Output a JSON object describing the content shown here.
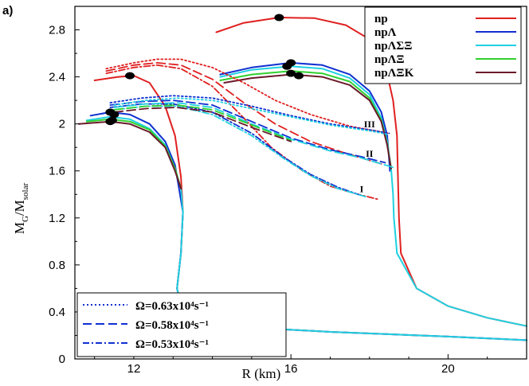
{
  "chart_data": {
    "type": "line",
    "panel_label": "a)",
    "xlabel": "R (km)",
    "ylabel_main": "M",
    "ylabel_sub1": "G",
    "ylabel_mid": "/M",
    "ylabel_sub2": "solar",
    "xlim": [
      10.5,
      22
    ],
    "ylim": [
      0,
      3.0
    ],
    "x_ticks": [
      12,
      16,
      20
    ],
    "x_tick_labels": [
      "12",
      "16",
      "20"
    ],
    "y_ticks": [
      0,
      0.4,
      0.8,
      1.2,
      1.6,
      2.0,
      2.4,
      2.8
    ],
    "y_tick_labels": [
      "0",
      "0.4",
      "0.8",
      "1.2",
      "1.6",
      "2",
      "2.4",
      "2.8"
    ],
    "grid": false,
    "legend_top": {
      "placement": "top-right",
      "entries": [
        {
          "label": "np",
          "color": "#e02020"
        },
        {
          "label": "npΛ",
          "color": "#1030d0"
        },
        {
          "label": "npΛΣΞ",
          "color": "#20d0e0"
        },
        {
          "label": "npΛΞ",
          "color": "#30d030"
        },
        {
          "label": "npΛΞK",
          "color": "#6a1a2a"
        }
      ]
    },
    "legend_bottom": {
      "placement": "bottom-left",
      "entries": [
        {
          "label": "Ω=0.63x10⁴s⁻¹",
          "style": "dotted",
          "color": "#1030d0"
        },
        {
          "label": "Ω=0.58x10⁴s⁻¹",
          "style": "dashed",
          "color": "#1030d0"
        },
        {
          "label": "Ω=0.53x10⁴s⁻¹",
          "style": "dashdot",
          "color": "#1030d0"
        }
      ]
    },
    "annotations": [
      {
        "text": "III",
        "x": 18.0,
        "y": 1.97
      },
      {
        "text": "II",
        "x": 18.0,
        "y": 1.72
      },
      {
        "text": "I",
        "x": 17.8,
        "y": 1.42
      }
    ],
    "series": [
      {
        "name": "np",
        "color": "#e02020",
        "style": "solid",
        "points": [
          [
            11.0,
            2.37
          ],
          [
            11.6,
            2.4
          ],
          [
            12.0,
            2.41
          ],
          [
            12.4,
            2.35
          ],
          [
            12.8,
            2.15
          ],
          [
            13.05,
            1.9
          ],
          [
            13.2,
            1.55
          ],
          [
            13.25,
            1.25
          ],
          [
            13.2,
            0.9
          ],
          [
            13.1,
            0.6
          ],
          [
            13.2,
            0.45
          ],
          [
            13.8,
            0.32
          ],
          [
            14.8,
            0.27
          ],
          [
            17.0,
            0.23
          ],
          [
            20.0,
            0.19
          ],
          [
            22.0,
            0.16
          ]
        ]
      },
      {
        "name": "npΛ",
        "color": "#1030d0",
        "style": "solid",
        "points": [
          [
            10.9,
            2.07
          ],
          [
            11.4,
            2.1
          ],
          [
            11.9,
            2.08
          ],
          [
            12.4,
            2.0
          ],
          [
            12.8,
            1.85
          ],
          [
            13.05,
            1.65
          ],
          [
            13.15,
            1.45
          ],
          [
            13.25,
            1.25
          ],
          [
            13.2,
            0.9
          ],
          [
            13.1,
            0.6
          ],
          [
            13.2,
            0.45
          ],
          [
            13.8,
            0.32
          ],
          [
            14.8,
            0.27
          ],
          [
            17.0,
            0.23
          ],
          [
            20.0,
            0.19
          ],
          [
            22.0,
            0.16
          ]
        ]
      },
      {
        "name": "npΛΣΞ",
        "color": "#20d0e0",
        "style": "solid",
        "points": [
          [
            10.8,
            2.03
          ],
          [
            11.4,
            2.06
          ],
          [
            11.9,
            2.04
          ],
          [
            12.4,
            1.96
          ],
          [
            12.8,
            1.82
          ],
          [
            13.05,
            1.62
          ],
          [
            13.2,
            1.45
          ],
          [
            13.25,
            1.25
          ],
          [
            13.2,
            0.9
          ],
          [
            13.1,
            0.6
          ],
          [
            13.2,
            0.45
          ],
          [
            13.8,
            0.32
          ],
          [
            14.8,
            0.27
          ],
          [
            17.0,
            0.23
          ],
          [
            20.0,
            0.19
          ],
          [
            22.0,
            0.16
          ]
        ]
      },
      {
        "name": "npΛΞ",
        "color": "#30d030",
        "style": "solid",
        "points": [
          [
            10.8,
            2.02
          ],
          [
            11.4,
            2.04
          ],
          [
            11.9,
            2.02
          ],
          [
            12.4,
            1.95
          ],
          [
            12.8,
            1.81
          ],
          [
            13.05,
            1.62
          ],
          [
            13.2,
            1.45
          ]
        ]
      },
      {
        "name": "npΛΞK",
        "color": "#6a1a2a",
        "style": "solid",
        "points": [
          [
            10.6,
            2.0
          ],
          [
            11.4,
            2.02
          ],
          [
            11.9,
            2.0
          ],
          [
            12.4,
            1.93
          ],
          [
            12.8,
            1.8
          ],
          [
            13.05,
            1.6
          ],
          [
            13.2,
            1.45
          ]
        ]
      },
      {
        "name": "np",
        "color": "#e02020",
        "style": "solid",
        "points": [
          [
            14.1,
            2.78
          ],
          [
            14.8,
            2.86
          ],
          [
            15.7,
            2.905
          ],
          [
            16.6,
            2.9
          ],
          [
            17.4,
            2.84
          ],
          [
            18.0,
            2.72
          ],
          [
            18.4,
            2.5
          ],
          [
            18.6,
            2.2
          ],
          [
            18.7,
            1.9
          ],
          [
            18.72,
            1.6
          ],
          [
            18.75,
            1.2
          ],
          [
            18.8,
            0.9
          ],
          [
            19.2,
            0.6
          ],
          [
            20.0,
            0.45
          ],
          [
            21.0,
            0.35
          ],
          [
            22.0,
            0.28
          ]
        ]
      },
      {
        "name": "npΛ",
        "color": "#1030d0",
        "style": "solid",
        "points": [
          [
            14.2,
            2.42
          ],
          [
            15.0,
            2.48
          ],
          [
            16.0,
            2.52
          ],
          [
            16.8,
            2.5
          ],
          [
            17.5,
            2.42
          ],
          [
            18.0,
            2.28
          ],
          [
            18.3,
            2.1
          ],
          [
            18.45,
            1.9
          ],
          [
            18.5,
            1.7
          ],
          [
            18.52,
            1.6
          ]
        ]
      },
      {
        "name": "npΛΣΞ",
        "color": "#20d0e0",
        "style": "solid",
        "points": [
          [
            14.2,
            2.4
          ],
          [
            15.0,
            2.46
          ],
          [
            16.0,
            2.49
          ],
          [
            16.8,
            2.47
          ],
          [
            17.5,
            2.39
          ],
          [
            18.0,
            2.25
          ],
          [
            18.3,
            2.05
          ],
          [
            18.45,
            1.85
          ],
          [
            18.55,
            1.62
          ],
          [
            18.6,
            1.4
          ],
          [
            18.62,
            1.2
          ],
          [
            18.7,
            0.9
          ],
          [
            19.2,
            0.6
          ],
          [
            20.0,
            0.45
          ],
          [
            21.0,
            0.35
          ],
          [
            22.0,
            0.28
          ]
        ]
      },
      {
        "name": "npΛΞ",
        "color": "#30d030",
        "style": "solid",
        "points": [
          [
            14.2,
            2.37
          ],
          [
            15.0,
            2.42
          ],
          [
            16.0,
            2.45
          ],
          [
            16.8,
            2.43
          ],
          [
            17.5,
            2.36
          ],
          [
            18.0,
            2.22
          ],
          [
            18.3,
            2.03
          ],
          [
            18.45,
            1.83
          ],
          [
            18.55,
            1.62
          ]
        ]
      },
      {
        "name": "npΛΞK",
        "color": "#6a1a2a",
        "style": "solid",
        "points": [
          [
            14.3,
            2.35
          ],
          [
            15.0,
            2.39
          ],
          [
            16.0,
            2.42
          ],
          [
            16.8,
            2.4
          ],
          [
            17.5,
            2.33
          ],
          [
            18.0,
            2.2
          ],
          [
            18.3,
            2.02
          ],
          [
            18.45,
            1.82
          ],
          [
            18.55,
            1.62
          ]
        ]
      },
      {
        "name": "np Ω=0.63",
        "color": "#e02020",
        "style": "dotted",
        "points": [
          [
            11.3,
            2.47
          ],
          [
            12.0,
            2.52
          ],
          [
            12.6,
            2.55
          ],
          [
            13.2,
            2.55
          ],
          [
            14.0,
            2.48
          ],
          [
            14.8,
            2.35
          ],
          [
            15.6,
            2.2
          ],
          [
            16.5,
            2.08
          ],
          [
            17.5,
            1.98
          ],
          [
            18.5,
            1.92
          ]
        ]
      },
      {
        "name": "np Ω=0.58",
        "color": "#e02020",
        "style": "dashed",
        "points": [
          [
            11.3,
            2.45
          ],
          [
            12.0,
            2.5
          ],
          [
            12.6,
            2.52
          ],
          [
            13.2,
            2.5
          ],
          [
            14.0,
            2.38
          ],
          [
            14.8,
            2.18
          ],
          [
            15.6,
            2.0
          ],
          [
            16.5,
            1.85
          ],
          [
            17.3,
            1.76
          ],
          [
            18.3,
            1.66
          ]
        ]
      },
      {
        "name": "np Ω=0.53",
        "color": "#e02020",
        "style": "dashdot",
        "points": [
          [
            11.3,
            2.43
          ],
          [
            12.0,
            2.48
          ],
          [
            12.6,
            2.5
          ],
          [
            13.2,
            2.47
          ],
          [
            14.0,
            2.32
          ],
          [
            14.8,
            2.05
          ],
          [
            15.5,
            1.8
          ],
          [
            16.3,
            1.6
          ],
          [
            17.0,
            1.47
          ],
          [
            17.6,
            1.41
          ],
          [
            18.2,
            1.36
          ]
        ]
      },
      {
        "name": "npΛ Ω=0.63",
        "color": "#1030d0",
        "style": "dotted",
        "points": [
          [
            11.4,
            2.18
          ],
          [
            12.2,
            2.22
          ],
          [
            13.0,
            2.24
          ],
          [
            14.0,
            2.22
          ],
          [
            15.0,
            2.15
          ],
          [
            16.0,
            2.07
          ],
          [
            17.0,
            2.0
          ],
          [
            18.0,
            1.95
          ],
          [
            18.5,
            1.92
          ]
        ]
      },
      {
        "name": "npΛ Ω=0.58",
        "color": "#1030d0",
        "style": "dashed",
        "points": [
          [
            11.4,
            2.16
          ],
          [
            12.2,
            2.19
          ],
          [
            13.0,
            2.2
          ],
          [
            14.0,
            2.16
          ],
          [
            15.0,
            2.02
          ],
          [
            16.0,
            1.88
          ],
          [
            17.0,
            1.78
          ],
          [
            17.8,
            1.72
          ],
          [
            18.4,
            1.67
          ]
        ]
      },
      {
        "name": "npΛ Ω=0.53",
        "color": "#1030d0",
        "style": "dashdot",
        "points": [
          [
            11.4,
            2.14
          ],
          [
            12.2,
            2.17
          ],
          [
            13.0,
            2.17
          ],
          [
            14.0,
            2.1
          ],
          [
            15.0,
            1.92
          ],
          [
            15.8,
            1.72
          ],
          [
            16.5,
            1.57
          ],
          [
            17.2,
            1.46
          ],
          [
            17.8,
            1.39
          ]
        ]
      },
      {
        "name": "npΛΣΞ Ω=0.63",
        "color": "#20d0e0",
        "style": "dotted",
        "points": [
          [
            11.5,
            2.16
          ],
          [
            12.3,
            2.2
          ],
          [
            13.1,
            2.22
          ],
          [
            14.0,
            2.2
          ],
          [
            15.0,
            2.13
          ],
          [
            16.0,
            2.06
          ],
          [
            17.0,
            1.99
          ],
          [
            18.0,
            1.94
          ],
          [
            18.5,
            1.91
          ]
        ]
      },
      {
        "name": "npΛΣΞ Ω=0.58",
        "color": "#20d0e0",
        "style": "dashed",
        "points": [
          [
            11.5,
            2.14
          ],
          [
            12.3,
            2.17
          ],
          [
            13.1,
            2.18
          ],
          [
            14.0,
            2.14
          ],
          [
            15.0,
            2.0
          ],
          [
            16.0,
            1.87
          ],
          [
            17.0,
            1.77
          ],
          [
            17.8,
            1.71
          ],
          [
            18.6,
            1.63
          ]
        ]
      },
      {
        "name": "npΛΣΞ Ω=0.53",
        "color": "#20d0e0",
        "style": "dashdot",
        "points": [
          [
            11.5,
            2.12
          ],
          [
            12.3,
            2.15
          ],
          [
            13.1,
            2.15
          ],
          [
            14.0,
            2.08
          ],
          [
            15.0,
            1.9
          ],
          [
            15.8,
            1.71
          ],
          [
            16.5,
            1.56
          ],
          [
            17.2,
            1.45
          ],
          [
            17.9,
            1.38
          ]
        ]
      },
      {
        "name": "npΛΞ Ω=0.58",
        "color": "#30d030",
        "style": "dashed",
        "points": [
          [
            11.5,
            2.12
          ],
          [
            12.3,
            2.15
          ],
          [
            13.1,
            2.16
          ],
          [
            14.0,
            2.12
          ],
          [
            15.0,
            1.99
          ],
          [
            16.0,
            1.86
          ]
        ]
      },
      {
        "name": "npΛΞK Ω=0.58",
        "color": "#6a1a2a",
        "style": "dashed",
        "points": [
          [
            11.5,
            2.1
          ],
          [
            12.3,
            2.13
          ],
          [
            13.1,
            2.14
          ],
          [
            14.0,
            2.1
          ],
          [
            15.0,
            1.97
          ],
          [
            16.0,
            1.85
          ]
        ]
      }
    ],
    "markers": [
      [
        15.7,
        2.905
      ],
      [
        11.9,
        2.41
      ],
      [
        16.0,
        2.52
      ],
      [
        15.9,
        2.49
      ],
      [
        16.0,
        2.43
      ],
      [
        16.2,
        2.41
      ],
      [
        11.4,
        2.1
      ],
      [
        11.5,
        2.08
      ],
      [
        11.4,
        2.02
      ],
      [
        11.45,
        2.03
      ]
    ]
  }
}
